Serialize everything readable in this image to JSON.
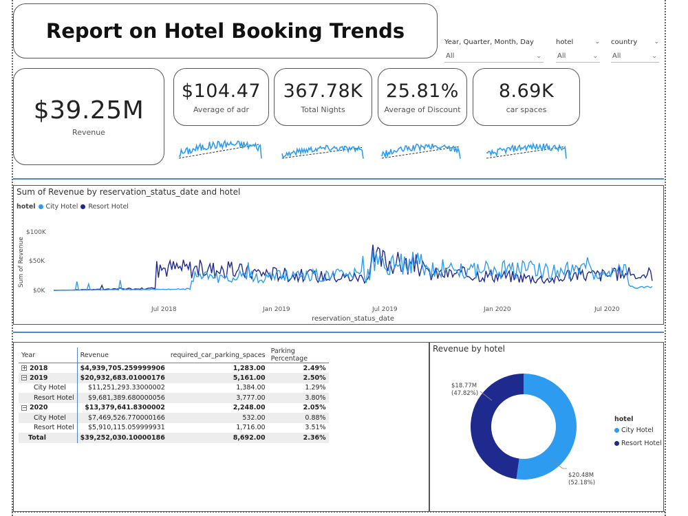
{
  "title": "Report on Hotel Booking Trends",
  "slicers": [
    {
      "label": "Year, Quarter, Month, Day",
      "value": "All"
    },
    {
      "label": "hotel",
      "value": "All"
    },
    {
      "label": "country",
      "value": "All"
    }
  ],
  "kpis": {
    "revenue": {
      "value": "$39.25M",
      "label": "Revenue"
    },
    "adr": {
      "value": "$104.47",
      "label": "Average of adr"
    },
    "nights": {
      "value": "367.78K",
      "label": "Total Nights"
    },
    "discount": {
      "value": "25.81%",
      "label": "Average of Discount"
    },
    "car": {
      "value": "8.69K",
      "label": "car spaces"
    }
  },
  "colors": {
    "city": "#2d9cf0",
    "resort": "#1f2a8f",
    "accent": "#4a86c8"
  },
  "line_chart": {
    "title": "Sum of Revenue by reservation_status_date and hotel",
    "legend_title": "hotel",
    "series_names": [
      "City Hotel",
      "Resort Hotel"
    ],
    "ylabel": "Sum of Revenue",
    "xlabel": "reservation_status_date",
    "yticks": [
      "$100K",
      "$50K",
      "$0K"
    ],
    "xticks": [
      "Jul 2018",
      "Jan 2019",
      "Jul 2019",
      "Jan 2020",
      "Jul 2020"
    ]
  },
  "matrix": {
    "headers": [
      "Year",
      "Revenue",
      "required_car_parking_spaces",
      "Parking Percentage"
    ],
    "rows": [
      {
        "label": "2018",
        "revenue": "$4,939,705.259999906",
        "spaces": "1,283.00",
        "pct": "2.49%",
        "kind": "year",
        "toggle": "+"
      },
      {
        "label": "2019",
        "revenue": "$20,932,683.01000176",
        "spaces": "5,161.00",
        "pct": "2.50%",
        "kind": "year",
        "toggle": "−"
      },
      {
        "label": "City Hotel",
        "revenue": "$11,251,293.33000002",
        "spaces": "1,384.00",
        "pct": "1.29%",
        "kind": "sub"
      },
      {
        "label": "Resort Hotel",
        "revenue": "$9,681,389.680000056",
        "spaces": "3,777.00",
        "pct": "3.80%",
        "kind": "sub"
      },
      {
        "label": "2020",
        "revenue": "$13,379,641.8300002",
        "spaces": "2,248.00",
        "pct": "2.05%",
        "kind": "year",
        "toggle": "−"
      },
      {
        "label": "City Hotel",
        "revenue": "$7,469,526.770000166",
        "spaces": "532.00",
        "pct": "0.88%",
        "kind": "sub"
      },
      {
        "label": "Resort Hotel",
        "revenue": "$5,910,115.059999931",
        "spaces": "1,716.00",
        "pct": "3.51%",
        "kind": "sub"
      },
      {
        "label": "Total",
        "revenue": "$39,252,030.10000186",
        "spaces": "8,692.00",
        "pct": "2.36%",
        "kind": "total"
      }
    ]
  },
  "chart_data": {
    "type": "pie",
    "title": "Revenue by hotel",
    "legend_title": "hotel",
    "categories": [
      "City Hotel",
      "Resort Hotel"
    ],
    "values": [
      20.48,
      18.77
    ],
    "labels": [
      [
        "$20.48M",
        "(52.18%)"
      ],
      [
        "$18.77M",
        "(47.82%)"
      ]
    ],
    "legend_position": "right"
  }
}
